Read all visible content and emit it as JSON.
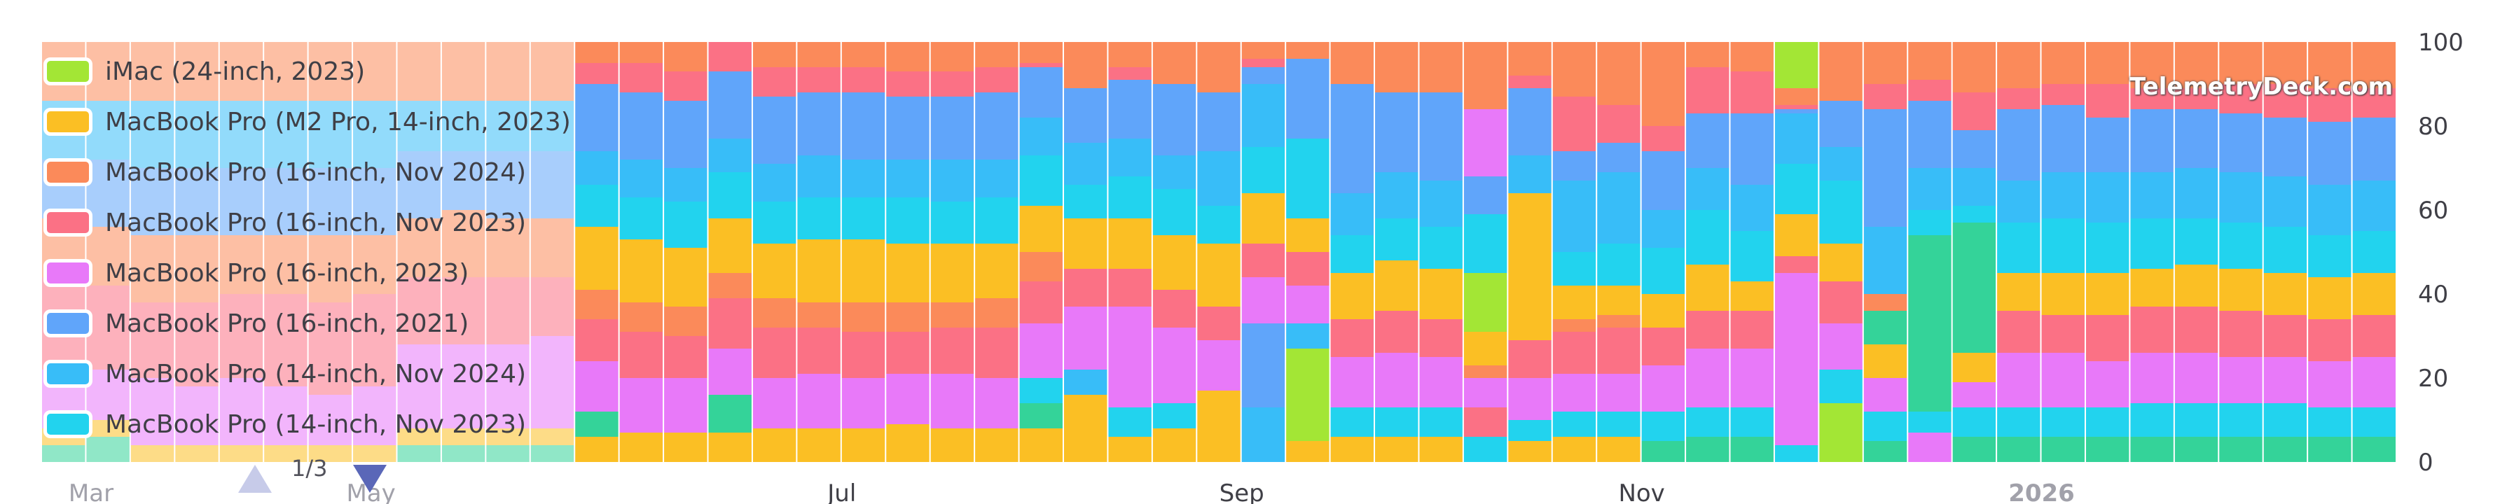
{
  "chart_data": {
    "type": "bar",
    "stacked": true,
    "ylim": [
      0,
      100
    ],
    "yticks": [
      "0",
      "20",
      "40",
      "60",
      "80",
      "100"
    ],
    "x_tick_labels": [
      {
        "label": "Mar",
        "bar_index": -12,
        "bold": false,
        "muted": true
      },
      {
        "label": "May",
        "bar_index": -3,
        "bold": false,
        "muted": true
      },
      {
        "label": "Jul",
        "bar_index": 6,
        "bold": false,
        "muted": false
      },
      {
        "label": "Sep",
        "bar_index": 15,
        "bold": false,
        "muted": false
      },
      {
        "label": "Nov",
        "bar_index": 24,
        "bold": false,
        "muted": false
      },
      {
        "label": "2026",
        "bar_index": 33,
        "bold": true,
        "muted": true
      }
    ],
    "legend_position": "top-left",
    "legend": [
      {
        "name": "iMac (24-inch, 2023)",
        "color": "#a3e635"
      },
      {
        "name": "MacBook Pro (M2 Pro, 14-inch, 2023)",
        "color": "#fbbf24"
      },
      {
        "name": "MacBook Pro (16-inch, Nov 2024)",
        "color": "#fb8a5a"
      },
      {
        "name": "MacBook Pro (16-inch, Nov 2023)",
        "color": "#fb7185"
      },
      {
        "name": "MacBook Pro (16-inch, 2023)",
        "color": "#e879f9"
      },
      {
        "name": "MacBook Pro (16-inch, 2021)",
        "color": "#60a5fa"
      },
      {
        "name": "MacBook Pro (14-inch, Nov 2024)",
        "color": "#38bdf8"
      },
      {
        "name": "MacBook Pro (14-inch, Nov 2023)",
        "color": "#22d3ee"
      }
    ],
    "stack_order": [
      "green",
      "yellow",
      "lime",
      "cyan",
      "sky",
      "purple",
      "pink",
      "orange",
      "blue",
      "sky2",
      "cyan2",
      "pink2",
      "orange2"
    ],
    "colors": {
      "green": "#34d399",
      "yellow": "#fbbf24",
      "lime": "#a3e635",
      "cyan": "#22d3ee",
      "sky": "#38bdf8",
      "purple": "#e879f9",
      "pink": "#fb7185",
      "orange": "#fb8a5a",
      "blue": "#60a5fa",
      "sky2": "#38bdf8",
      "cyan2": "#22d3ee",
      "pink2": "#fb7185",
      "orange2": "#fb8a5a"
    },
    "faded_bar_count": 12,
    "bars": [
      {
        "green": 4,
        "yellow": 4,
        "purple": 14,
        "pink": 22,
        "orange": 14,
        "blue": 14,
        "sky": 14,
        "orange2": 14
      },
      {
        "green": 6,
        "yellow": 4,
        "purple": 12,
        "pink": 20,
        "orange": 14,
        "blue": 16,
        "sky": 14,
        "orange2": 14
      },
      {
        "yellow": 4,
        "purple": 16,
        "pink": 18,
        "orange": 16,
        "blue": 16,
        "sky": 16,
        "orange2": 14
      },
      {
        "yellow": 4,
        "purple": 14,
        "pink": 20,
        "orange": 16,
        "blue": 16,
        "sky": 16,
        "orange2": 14
      },
      {
        "yellow": 4,
        "purple": 16,
        "pink": 20,
        "orange": 14,
        "blue": 16,
        "sky": 16,
        "orange2": 14
      },
      {
        "yellow": 4,
        "purple": 14,
        "pink": 22,
        "orange": 14,
        "blue": 16,
        "sky": 16,
        "orange2": 14
      },
      {
        "yellow": 4,
        "purple": 12,
        "pink": 22,
        "orange": 16,
        "blue": 16,
        "sky": 16,
        "orange2": 14
      },
      {
        "yellow": 4,
        "purple": 14,
        "pink": 22,
        "orange": 14,
        "blue": 16,
        "sky": 16,
        "orange2": 14
      },
      {
        "green": 4,
        "yellow": 4,
        "purple": 20,
        "pink": 16,
        "orange": 14,
        "blue": 16,
        "sky": 12,
        "orange2": 14
      },
      {
        "green": 4,
        "yellow": 4,
        "purple": 20,
        "pink": 16,
        "orange": 16,
        "blue": 14,
        "sky": 12,
        "orange2": 14
      },
      {
        "green": 4,
        "yellow": 4,
        "purple": 20,
        "pink": 16,
        "orange": 14,
        "blue": 16,
        "sky": 12,
        "orange2": 14
      },
      {
        "green": 4,
        "yellow": 4,
        "purple": 22,
        "pink": 14,
        "orange": 14,
        "blue": 16,
        "sky": 12,
        "orange2": 14
      },
      {
        "yellow": 6,
        "green": 6,
        "purple": 12,
        "pink": 10,
        "orange": 7,
        "yellow2": 15,
        "cyan": 10,
        "sky": 8,
        "blue": 16,
        "pink2": 5,
        "orange2": 5
      },
      {
        "yellow": 7,
        "purple": 13,
        "pink": 11,
        "orange": 7,
        "yellow2": 15,
        "cyan": 10,
        "sky": 9,
        "blue": 16,
        "pink2": 7,
        "orange2": 5
      },
      {
        "yellow": 7,
        "purple": 13,
        "pink": 10,
        "orange": 7,
        "yellow2": 14,
        "cyan": 11,
        "sky": 8,
        "blue": 16,
        "pink2": 7,
        "orange2": 7
      },
      {
        "yellow": 7,
        "green": 9,
        "purple": 11,
        "pink": 12,
        "orange": 6,
        "yellow2": 13,
        "cyan": 11,
        "sky": 8,
        "blue": 16,
        "pink2": 7
      },
      {
        "yellow": 8,
        "purple": 12,
        "pink": 12,
        "orange": 7,
        "yellow2": 13,
        "cyan": 10,
        "sky": 9,
        "blue": 16,
        "pink2": 7,
        "orange2": 6
      },
      {
        "yellow": 8,
        "purple": 13,
        "pink": 11,
        "orange": 6,
        "yellow2": 15,
        "cyan": 10,
        "sky": 10,
        "blue": 15,
        "pink2": 6,
        "orange2": 6
      },
      {
        "yellow": 8,
        "purple": 12,
        "pink": 11,
        "orange": 7,
        "yellow2": 15,
        "cyan": 10,
        "sky": 9,
        "blue": 16,
        "pink2": 6,
        "orange2": 6
      },
      {
        "yellow": 9,
        "purple": 12,
        "pink": 10,
        "orange": 7,
        "yellow2": 14,
        "cyan": 11,
        "sky": 9,
        "blue": 15,
        "pink2": 6,
        "orange2": 7
      },
      {
        "yellow": 8,
        "purple": 13,
        "pink": 11,
        "orange": 6,
        "yellow2": 14,
        "cyan": 10,
        "sky": 10,
        "blue": 15,
        "pink2": 6,
        "orange2": 7
      },
      {
        "yellow": 8,
        "purple": 12,
        "pink": 12,
        "orange": 7,
        "yellow2": 13,
        "cyan": 11,
        "sky": 9,
        "blue": 16,
        "pink2": 6,
        "orange2": 6
      },
      {
        "yellow": 8,
        "green": 6,
        "cyan": 6,
        "purple": 13,
        "pink": 10,
        "orange": 7,
        "yellow2": 11,
        "cyan2": 12,
        "sky": 9,
        "blue": 12,
        "pink2": 1,
        "orange2": 5
      },
      {
        "yellow": 16,
        "sky": 6,
        "purple": 15,
        "pink": 9,
        "yellow2": 12,
        "cyan": 8,
        "sky2": 10,
        "blue": 13,
        "orange2": 11
      },
      {
        "yellow": 6,
        "cyan": 7,
        "purple": 24,
        "pink": 9,
        "yellow2": 12,
        "cyan2": 10,
        "sky": 9,
        "blue": 14,
        "pink2": 3,
        "orange2": 6
      },
      {
        "yellow": 8,
        "cyan": 6,
        "purple": 18,
        "pink": 9,
        "yellow2": 13,
        "cyan2": 11,
        "sky": 8,
        "blue": 17,
        "orange2": 10
      },
      {
        "yellow": 17,
        "purple": 12,
        "pink": 8,
        "yellow2": 15,
        "cyan": 9,
        "sky": 13,
        "blue": 14,
        "orange2": 12
      },
      {
        "sky": 13,
        "blue": 20,
        "purple": 11,
        "pink": 8,
        "yellow": 12,
        "cyan": 11,
        "sky2": 15,
        "blue2": 4,
        "pink2": 2,
        "orange2": 4
      },
      {
        "yellow": 5,
        "lime": 22,
        "sky": 6,
        "purple": 9,
        "pink": 8,
        "yellow2": 8,
        "cyan": 19,
        "blue": 19,
        "orange2": 4
      },
      {
        "yellow": 6,
        "cyan": 7,
        "purple": 12,
        "pink": 9,
        "yellow2": 11,
        "cyan2": 9,
        "sky": 10,
        "blue": 26,
        "orange2": 10
      },
      {
        "yellow": 6,
        "cyan": 7,
        "purple": 13,
        "pink": 10,
        "yellow2": 12,
        "cyan2": 10,
        "sky": 11,
        "blue": 19,
        "orange2": 12
      },
      {
        "yellow": 6,
        "cyan": 7,
        "purple": 12,
        "pink": 9,
        "yellow2": 12,
        "cyan2": 10,
        "sky": 11,
        "blue": 21,
        "orange2": 12
      },
      {
        "cyan": 6,
        "pink": 7,
        "purple": 7,
        "orange": 3,
        "yellow": 8,
        "lime": 14,
        "cyan2": 14,
        "blue": 9,
        "purple2": 16,
        "orange2": 16
      },
      {
        "yellow": 5,
        "cyan": 5,
        "purple": 10,
        "pink": 9,
        "yellow2": 35,
        "sky": 9,
        "blue": 16,
        "pink2": 3,
        "orange2": 8
      },
      {
        "yellow": 6,
        "cyan": 6,
        "purple": 9,
        "pink": 10,
        "orange": 3,
        "yellow2": 8,
        "cyan2": 8,
        "sky": 17,
        "blue": 7,
        "pink2": 13,
        "orange2": 13
      },
      {
        "yellow": 6,
        "cyan": 6,
        "purple": 9,
        "pink": 11,
        "orange": 3,
        "yellow2": 7,
        "cyan2": 10,
        "sky": 17,
        "blue": 7,
        "pink2": 9,
        "orange2": 15
      },
      {
        "green": 5,
        "cyan": 7,
        "purple": 11,
        "pink": 9,
        "yellow": 8,
        "cyan2": 11,
        "sky": 9,
        "blue": 14,
        "pink2": 6,
        "orange2": 20
      },
      {
        "green": 6,
        "cyan": 7,
        "purple": 14,
        "pink": 9,
        "yellow": 11,
        "cyan2": 13,
        "sky": 10,
        "blue": 13,
        "pink2": 11,
        "orange2": 6
      },
      {
        "green": 6,
        "cyan": 7,
        "purple": 14,
        "pink": 9,
        "yellow": 7,
        "cyan2": 12,
        "sky": 11,
        "blue": 17,
        "pink2": 10,
        "orange2": 7
      },
      {
        "cyan": 4,
        "purple": 41,
        "pink": 4,
        "yellow": 10,
        "cyan2": 12,
        "sky": 12,
        "blue": 1,
        "pink2": 1,
        "orange": 4,
        "lime": 11
      },
      {
        "lime": 14,
        "cyan": 8,
        "sky": 0,
        "purple": 11,
        "pink": 10,
        "yellow": 9,
        "cyan2": 15,
        "sky2": 8,
        "blue": 11,
        "orange2": 14
      },
      {
        "green": 5,
        "cyan": 7,
        "purple": 8,
        "yellow": 8,
        "green2": 8,
        "orange": 4,
        "sky": 16,
        "blue": 28,
        "pink": 6,
        "orange2": 10
      },
      {
        "purple": 7,
        "cyan": 5,
        "green": 42,
        "cyan2": 6,
        "sky": 10,
        "blue": 16,
        "pink": 5,
        "orange2": 9
      },
      {
        "green": 6,
        "cyan": 7,
        "purple": 6,
        "yellow": 7,
        "green2": 31,
        "cyan2": 4,
        "sky": 9,
        "blue": 9,
        "pink": 9,
        "orange2": 12
      },
      {
        "green": 6,
        "cyan": 7,
        "purple": 13,
        "pink": 10,
        "yellow": 9,
        "cyan2": 12,
        "sky": 10,
        "blue": 17,
        "pink2": 5,
        "orange2": 11
      },
      {
        "green": 6,
        "cyan": 7,
        "purple": 13,
        "pink": 9,
        "yellow": 10,
        "cyan2": 13,
        "sky": 11,
        "blue": 16,
        "pink2": 5,
        "orange2": 10
      },
      {
        "green": 6,
        "cyan": 7,
        "purple": 11,
        "pink": 11,
        "yellow": 10,
        "cyan2": 12,
        "sky": 12,
        "blue": 13,
        "pink2": 8,
        "orange2": 10
      },
      {
        "green": 6,
        "cyan": 8,
        "purple": 12,
        "pink": 11,
        "yellow": 9,
        "cyan2": 12,
        "sky": 11,
        "blue": 15,
        "pink2": 5,
        "orange2": 11
      },
      {
        "green": 6,
        "cyan": 8,
        "purple": 12,
        "pink": 11,
        "yellow": 10,
        "cyan2": 11,
        "sky": 12,
        "blue": 14,
        "pink2": 5,
        "orange2": 11
      },
      {
        "green": 6,
        "cyan": 8,
        "purple": 11,
        "pink": 11,
        "yellow": 10,
        "cyan2": 11,
        "sky": 12,
        "blue": 14,
        "pink2": 7,
        "orange2": 10
      },
      {
        "green": 6,
        "cyan": 8,
        "purple": 11,
        "pink": 10,
        "yellow": 10,
        "cyan2": 11,
        "sky": 12,
        "blue": 14,
        "pink2": 8,
        "orange2": 10
      },
      {
        "green": 6,
        "cyan": 7,
        "purple": 11,
        "pink": 10,
        "yellow": 10,
        "cyan2": 10,
        "sky": 12,
        "blue": 15,
        "pink2": 8,
        "orange2": 11
      },
      {
        "green": 6,
        "cyan": 7,
        "purple": 12,
        "pink": 10,
        "yellow": 10,
        "cyan2": 10,
        "sky": 12,
        "blue": 15,
        "pink2": 7,
        "orange2": 11
      }
    ]
  },
  "pager": {
    "text": "1/3"
  },
  "watermark": "TelemetryDeck.com"
}
